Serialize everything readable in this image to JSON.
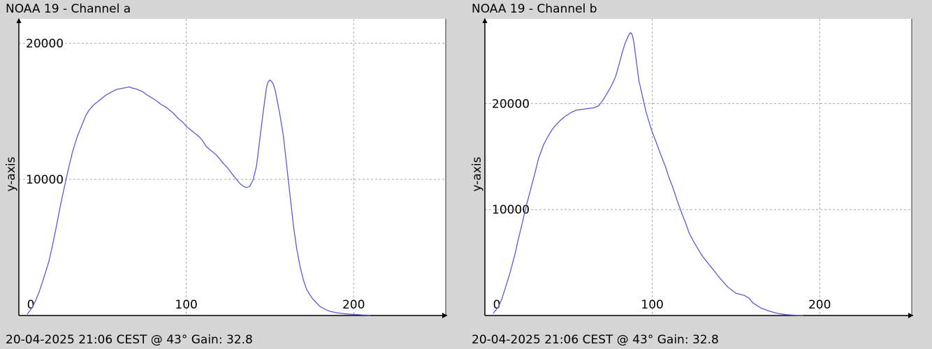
{
  "chart_data": [
    {
      "type": "line",
      "title": "NOAA 19 - Channel a",
      "ylabel": "y-axis",
      "xlabel": "",
      "footer": "20-04-2025 21:06 CEST @ 43° Gain: 32.8",
      "xlim": [
        0,
        255
      ],
      "ylim": [
        0,
        21800
      ],
      "x_ticks": [
        0,
        100,
        200
      ],
      "x_tick_labels": [
        "0",
        "100",
        "200"
      ],
      "y_ticks": [
        0,
        10000,
        20000
      ],
      "y_tick_labels": [
        "0",
        "10000",
        "20000"
      ],
      "grid": true,
      "line_color": "#5b5bd6",
      "series": [
        {
          "x": [
            5,
            8,
            10,
            12,
            15,
            18,
            20,
            22,
            25,
            28,
            30,
            32,
            35,
            38,
            40,
            42,
            45,
            48,
            50,
            52,
            55,
            58,
            60,
            62,
            64,
            66,
            68,
            70,
            72,
            74,
            76,
            78,
            80,
            82,
            85,
            88,
            90,
            92,
            95,
            98,
            100,
            102,
            105,
            108,
            110,
            112,
            115,
            118,
            120,
            122,
            125,
            128,
            130,
            132,
            134,
            136,
            138,
            140,
            142,
            144,
            146,
            148,
            149,
            150,
            151,
            152,
            153,
            154,
            156,
            158,
            160,
            162,
            164,
            166,
            168,
            170,
            172,
            175,
            178,
            180,
            183,
            186,
            190,
            195,
            200,
            205,
            210
          ],
          "y": [
            100,
            600,
            1100,
            1700,
            2800,
            4000,
            5100,
            6300,
            8200,
            9900,
            11000,
            12000,
            13200,
            14100,
            14700,
            15100,
            15500,
            15800,
            16000,
            16200,
            16400,
            16600,
            16650,
            16700,
            16750,
            16800,
            16700,
            16650,
            16550,
            16450,
            16250,
            16100,
            15950,
            15800,
            15500,
            15300,
            15100,
            14900,
            14500,
            14200,
            13900,
            13700,
            13400,
            13100,
            12800,
            12400,
            12100,
            11800,
            11500,
            11200,
            10800,
            10300,
            10000,
            9700,
            9500,
            9400,
            9500,
            10000,
            11000,
            13000,
            15000,
            16800,
            17200,
            17300,
            17200,
            17000,
            16600,
            16000,
            14700,
            13200,
            11000,
            8800,
            6600,
            4900,
            3600,
            2600,
            1900,
            1300,
            900,
            650,
            450,
            300,
            200,
            120,
            80,
            40,
            20
          ]
        }
      ]
    },
    {
      "type": "line",
      "title": "NOAA 19 - Channel b",
      "ylabel": "y-axis",
      "xlabel": "",
      "footer": "20-04-2025 21:06 CEST @ 43° Gain: 32.8",
      "xlim": [
        0,
        255
      ],
      "ylim": [
        0,
        28000
      ],
      "x_ticks": [
        0,
        100,
        200
      ],
      "x_tick_labels": [
        "0",
        "100",
        "200"
      ],
      "y_ticks": [
        0,
        10000,
        20000
      ],
      "y_tick_labels": [
        "0",
        "10000",
        "20000"
      ],
      "grid": true,
      "line_color": "#5b5bd6",
      "series": [
        {
          "x": [
            5,
            8,
            10,
            12,
            15,
            18,
            20,
            22,
            25,
            28,
            30,
            32,
            35,
            38,
            40,
            42,
            45,
            48,
            50,
            52,
            55,
            58,
            60,
            62,
            65,
            68,
            70,
            72,
            75,
            78,
            80,
            82,
            84,
            86,
            87,
            88,
            89,
            90,
            91,
            92,
            94,
            96,
            98,
            100,
            102,
            105,
            108,
            110,
            112,
            115,
            118,
            120,
            122,
            125,
            128,
            130,
            135,
            140,
            145,
            150,
            155,
            158,
            160,
            165,
            170,
            175,
            180,
            185,
            190
          ],
          "y": [
            200,
            800,
            1500,
            2500,
            4000,
            5800,
            7200,
            8500,
            10500,
            12300,
            13500,
            14800,
            16100,
            17000,
            17500,
            17900,
            18400,
            18800,
            19000,
            19200,
            19400,
            19450,
            19500,
            19550,
            19600,
            19800,
            20200,
            20700,
            21500,
            22500,
            23600,
            24800,
            25800,
            26500,
            26700,
            26500,
            25800,
            24600,
            23400,
            22200,
            20800,
            19400,
            18300,
            17300,
            16500,
            15200,
            14000,
            13000,
            12200,
            10800,
            9500,
            8700,
            7800,
            6900,
            6100,
            5600,
            4600,
            3600,
            2700,
            2100,
            1900,
            1600,
            1200,
            700,
            400,
            200,
            80,
            30,
            10
          ]
        }
      ]
    }
  ]
}
